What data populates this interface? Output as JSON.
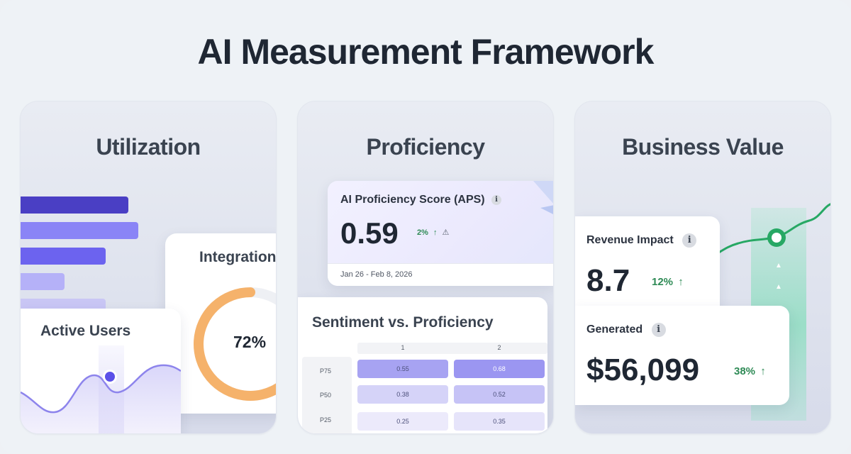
{
  "title": "AI Measurement Framework",
  "utilization": {
    "title": "Utilization",
    "integration_label": "Integration",
    "integration_value": "72%",
    "integration_fraction": 0.72,
    "active_users_label": "Active Users",
    "bars": [
      {
        "color": "#4a3fc4"
      },
      {
        "color": "#8a84f6"
      },
      {
        "color": "#6c63ef"
      },
      {
        "color": "#b5b1f8"
      },
      {
        "color": "#c9c6f5"
      }
    ]
  },
  "proficiency": {
    "title": "Proficiency",
    "aps_label": "AI Proficiency Score (APS)",
    "aps_value": "0.59",
    "aps_change": "2%",
    "aps_date": "Jan 26 - Feb 8, 2026",
    "sentiment_title": "Sentiment vs. Proficiency",
    "columns": [
      "1",
      "2"
    ],
    "rows": [
      {
        "label": "P75",
        "values": [
          "0.55",
          "0.68"
        ]
      },
      {
        "label": "P50",
        "values": [
          "0.38",
          "0.52"
        ]
      },
      {
        "label": "P25",
        "values": [
          "0.25",
          "0.35"
        ]
      }
    ]
  },
  "business_value": {
    "title": "Business Value",
    "revenue_label": "Revenue Impact",
    "revenue_value": "8.7",
    "revenue_change": "12%",
    "generated_label": "Generated",
    "generated_value": "$56,099",
    "generated_change": "38%"
  },
  "colors": {
    "accent_purple": "#6c63ef",
    "accent_green": "#27a864",
    "gauge_orange": "#f5b26b"
  }
}
